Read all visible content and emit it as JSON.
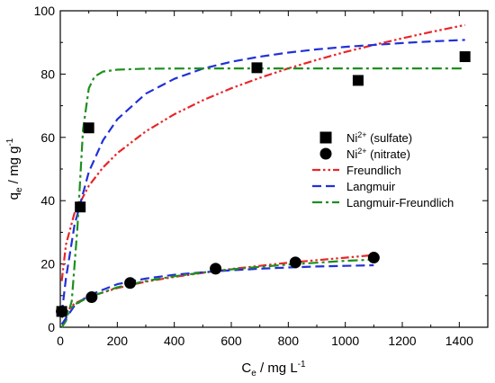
{
  "chart_data": {
    "type": "scatter",
    "title": "",
    "xlabel": {
      "main": "C",
      "sub": "e",
      "rest": " / mg L",
      "sup": "-1"
    },
    "ylabel": {
      "main": "q",
      "sub": "e",
      "rest": " / mg g",
      "sup": "-1"
    },
    "xlim": [
      0,
      1500
    ],
    "ylim": [
      0,
      100
    ],
    "xticks": [
      0,
      200,
      400,
      600,
      800,
      1000,
      1200,
      1400
    ],
    "yticks": [
      0,
      20,
      40,
      60,
      80,
      100
    ],
    "grid": false,
    "legend_position": "right",
    "series": [
      {
        "name": "Ni2+ (sulfate)",
        "label": {
          "pre": "Ni",
          "sup": "2+",
          "post": " (sulfate)"
        },
        "kind": "points",
        "marker": "square",
        "color": "#000000",
        "x": [
          5,
          70,
          100,
          690,
          1045,
          1420
        ],
        "y": [
          5,
          38,
          63,
          82,
          78,
          85.5
        ]
      },
      {
        "name": "Ni2+ (nitrate)",
        "label": {
          "pre": "Ni",
          "sup": "2+",
          "post": " (nitrate)"
        },
        "kind": "points",
        "marker": "circle",
        "color": "#000000",
        "x": [
          5,
          110,
          245,
          545,
          825,
          1100
        ],
        "y": [
          5,
          9.5,
          14,
          18.5,
          20.5,
          22
        ]
      },
      {
        "name": "Freundlich",
        "kind": "line",
        "dash": "dash-dot-dot",
        "color": "#e8262a",
        "x": [
          5,
          20,
          50,
          100,
          150,
          200,
          300,
          400,
          500,
          600,
          700,
          800,
          900,
          1000,
          1100,
          1200,
          1300,
          1420
        ],
        "y": [
          14.6,
          26.1,
          36.1,
          44.7,
          50.5,
          55.0,
          61.9,
          67.3,
          71.7,
          75.5,
          78.8,
          81.8,
          84.5,
          87.0,
          89.2,
          91.3,
          93.3,
          95.5
        ]
      },
      {
        "name": "Langmuir",
        "kind": "line",
        "dash": "dash",
        "color": "#2230d8",
        "x": [
          5,
          20,
          50,
          100,
          150,
          200,
          300,
          400,
          500,
          600,
          700,
          800,
          900,
          1000,
          1100,
          1200,
          1300,
          1420
        ],
        "y": [
          4.3,
          15.5,
          32.3,
          49.1,
          59.1,
          65.7,
          73.8,
          78.5,
          81.7,
          83.9,
          85.5,
          86.8,
          87.8,
          88.6,
          89.2,
          89.8,
          90.3,
          90.8
        ]
      },
      {
        "name": "Langmuir-Freundlich",
        "kind": "line",
        "dash": "dash-dot",
        "color": "#1e8f1e",
        "x": [
          5,
          20,
          40,
          60,
          80,
          100,
          120,
          150,
          200,
          300,
          500,
          800,
          1100,
          1420
        ],
        "y": [
          0.0,
          2.0,
          8.2,
          31.3,
          62.6,
          75.5,
          79.2,
          80.8,
          81.4,
          81.7,
          81.8,
          81.8,
          81.8,
          81.8
        ]
      },
      {
        "name": "Freundlich (nitrate)",
        "kind": "line",
        "dash": "dash-dot-dot",
        "color": "#e8262a",
        "in_legend": false,
        "x": [
          5,
          50,
          100,
          200,
          300,
          400,
          500,
          600,
          700,
          800,
          900,
          1000,
          1100
        ],
        "y": [
          3.3,
          7.5,
          9.6,
          12.4,
          14.4,
          15.9,
          17.2,
          18.4,
          19.4,
          20.4,
          21.2,
          22.0,
          22.8
        ]
      },
      {
        "name": "Langmuir (nitrate)",
        "kind": "line",
        "dash": "dash",
        "color": "#2230d8",
        "in_legend": false,
        "x": [
          5,
          50,
          100,
          200,
          300,
          400,
          500,
          600,
          700,
          800,
          900,
          1000,
          1100
        ],
        "y": [
          0.9,
          6.8,
          10.1,
          13.6,
          15.4,
          16.6,
          17.4,
          18.0,
          18.5,
          18.9,
          19.2,
          19.4,
          19.6
        ]
      },
      {
        "name": "Langmuir-Freundlich (nitrate)",
        "kind": "line",
        "dash": "dash-dot",
        "color": "#1e8f1e",
        "in_legend": false,
        "x": [
          5,
          50,
          100,
          200,
          300,
          400,
          500,
          600,
          700,
          800,
          900,
          1000,
          1100
        ],
        "y": [
          3.0,
          7.2,
          9.5,
          12.6,
          14.6,
          16.1,
          17.3,
          18.3,
          19.1,
          19.8,
          20.4,
          21.0,
          21.4
        ]
      }
    ]
  }
}
